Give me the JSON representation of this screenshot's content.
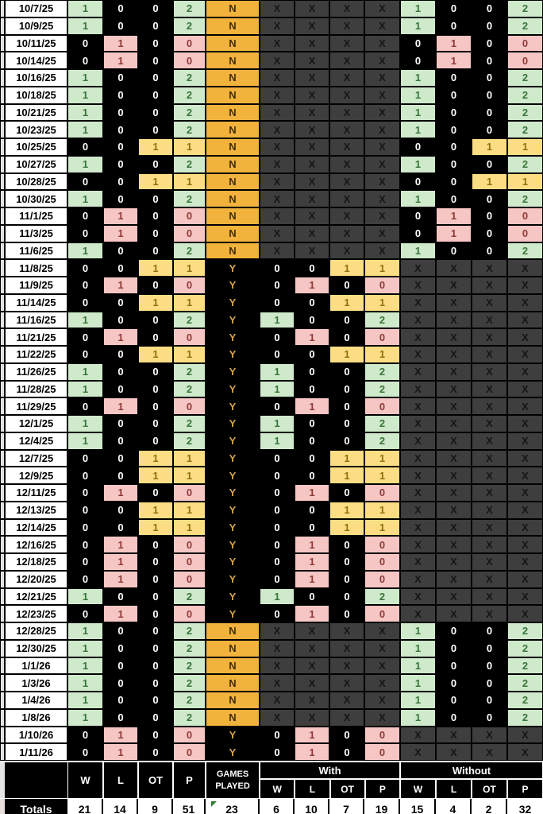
{
  "x_marker": "X",
  "header": {
    "main_cols": [
      "W",
      "L",
      "OT",
      "P"
    ],
    "games_played_line1": "GAMES",
    "games_played_line2": "PLAYED",
    "with_label": "With",
    "without_label": "Without",
    "sub_cols": [
      "W",
      "L",
      "OT",
      "P"
    ]
  },
  "rows": [
    {
      "date": "10/7/25",
      "w": 1,
      "l": 0,
      "ot": 0,
      "p": 2,
      "played": "N"
    },
    {
      "date": "10/9/25",
      "w": 1,
      "l": 0,
      "ot": 0,
      "p": 2,
      "played": "N"
    },
    {
      "date": "10/11/25",
      "w": 0,
      "l": 1,
      "ot": 0,
      "p": 0,
      "played": "N"
    },
    {
      "date": "10/14/25",
      "w": 0,
      "l": 1,
      "ot": 0,
      "p": 0,
      "played": "N"
    },
    {
      "date": "10/16/25",
      "w": 1,
      "l": 0,
      "ot": 0,
      "p": 2,
      "played": "N"
    },
    {
      "date": "10/18/25",
      "w": 1,
      "l": 0,
      "ot": 0,
      "p": 2,
      "played": "N"
    },
    {
      "date": "10/21/25",
      "w": 1,
      "l": 0,
      "ot": 0,
      "p": 2,
      "played": "N"
    },
    {
      "date": "10/23/25",
      "w": 1,
      "l": 0,
      "ot": 0,
      "p": 2,
      "played": "N"
    },
    {
      "date": "10/25/25",
      "w": 0,
      "l": 0,
      "ot": 1,
      "p": 1,
      "played": "N"
    },
    {
      "date": "10/27/25",
      "w": 1,
      "l": 0,
      "ot": 0,
      "p": 2,
      "played": "N"
    },
    {
      "date": "10/28/25",
      "w": 0,
      "l": 0,
      "ot": 1,
      "p": 1,
      "played": "N"
    },
    {
      "date": "10/30/25",
      "w": 1,
      "l": 0,
      "ot": 0,
      "p": 2,
      "played": "N"
    },
    {
      "date": "11/1/25",
      "w": 0,
      "l": 1,
      "ot": 0,
      "p": 0,
      "played": "N"
    },
    {
      "date": "11/3/25",
      "w": 0,
      "l": 1,
      "ot": 0,
      "p": 0,
      "played": "N"
    },
    {
      "date": "11/6/25",
      "w": 1,
      "l": 0,
      "ot": 0,
      "p": 2,
      "played": "N"
    },
    {
      "date": "11/8/25",
      "w": 0,
      "l": 0,
      "ot": 1,
      "p": 1,
      "played": "Y"
    },
    {
      "date": "11/9/25",
      "w": 0,
      "l": 1,
      "ot": 0,
      "p": 0,
      "played": "Y"
    },
    {
      "date": "11/14/25",
      "w": 0,
      "l": 0,
      "ot": 1,
      "p": 1,
      "played": "Y"
    },
    {
      "date": "11/16/25",
      "w": 1,
      "l": 0,
      "ot": 0,
      "p": 2,
      "played": "Y"
    },
    {
      "date": "11/21/25",
      "w": 0,
      "l": 1,
      "ot": 0,
      "p": 0,
      "played": "Y"
    },
    {
      "date": "11/22/25",
      "w": 0,
      "l": 0,
      "ot": 1,
      "p": 1,
      "played": "Y"
    },
    {
      "date": "11/26/25",
      "w": 1,
      "l": 0,
      "ot": 0,
      "p": 2,
      "played": "Y"
    },
    {
      "date": "11/28/25",
      "w": 1,
      "l": 0,
      "ot": 0,
      "p": 2,
      "played": "Y"
    },
    {
      "date": "11/29/25",
      "w": 0,
      "l": 1,
      "ot": 0,
      "p": 0,
      "played": "Y"
    },
    {
      "date": "12/1/25",
      "w": 1,
      "l": 0,
      "ot": 0,
      "p": 2,
      "played": "Y"
    },
    {
      "date": "12/4/25",
      "w": 1,
      "l": 0,
      "ot": 0,
      "p": 2,
      "played": "Y"
    },
    {
      "date": "12/7/25",
      "w": 0,
      "l": 0,
      "ot": 1,
      "p": 1,
      "played": "Y"
    },
    {
      "date": "12/9/25",
      "w": 0,
      "l": 0,
      "ot": 1,
      "p": 1,
      "played": "Y"
    },
    {
      "date": "12/11/25",
      "w": 0,
      "l": 1,
      "ot": 0,
      "p": 0,
      "played": "Y"
    },
    {
      "date": "12/13/25",
      "w": 0,
      "l": 0,
      "ot": 1,
      "p": 1,
      "played": "Y"
    },
    {
      "date": "12/14/25",
      "w": 0,
      "l": 0,
      "ot": 1,
      "p": 1,
      "played": "Y"
    },
    {
      "date": "12/16/25",
      "w": 0,
      "l": 1,
      "ot": 0,
      "p": 0,
      "played": "Y"
    },
    {
      "date": "12/18/25",
      "w": 0,
      "l": 1,
      "ot": 0,
      "p": 0,
      "played": "Y"
    },
    {
      "date": "12/20/25",
      "w": 0,
      "l": 1,
      "ot": 0,
      "p": 0,
      "played": "Y"
    },
    {
      "date": "12/21/25",
      "w": 1,
      "l": 0,
      "ot": 0,
      "p": 2,
      "played": "Y"
    },
    {
      "date": "12/23/25",
      "w": 0,
      "l": 1,
      "ot": 0,
      "p": 0,
      "played": "Y"
    },
    {
      "date": "12/28/25",
      "w": 1,
      "l": 0,
      "ot": 0,
      "p": 2,
      "played": "N"
    },
    {
      "date": "12/30/25",
      "w": 1,
      "l": 0,
      "ot": 0,
      "p": 2,
      "played": "N"
    },
    {
      "date": "1/1/26",
      "w": 1,
      "l": 0,
      "ot": 0,
      "p": 2,
      "played": "N"
    },
    {
      "date": "1/3/26",
      "w": 1,
      "l": 0,
      "ot": 0,
      "p": 2,
      "played": "N"
    },
    {
      "date": "1/4/26",
      "w": 1,
      "l": 0,
      "ot": 0,
      "p": 2,
      "played": "N"
    },
    {
      "date": "1/8/26",
      "w": 1,
      "l": 0,
      "ot": 0,
      "p": 2,
      "played": "N"
    },
    {
      "date": "1/10/26",
      "w": 0,
      "l": 1,
      "ot": 0,
      "p": 0,
      "played": "Y"
    },
    {
      "date": "1/11/26",
      "w": 0,
      "l": 1,
      "ot": 0,
      "p": 0,
      "played": "Y"
    }
  ],
  "totals": {
    "label": "Totals",
    "w": 21,
    "l": 14,
    "ot": 9,
    "p": 51,
    "games_played": 23,
    "with": {
      "w": 6,
      "l": 10,
      "ot": 7,
      "p": 19
    },
    "without": {
      "w": 15,
      "l": 4,
      "ot": 2,
      "p": 32
    }
  },
  "colors": {
    "green_bg": "#cfe9cb",
    "green_tx": "#38753a",
    "pink_bg": "#f6c6c4",
    "pink_tx": "#8e3a36",
    "yellow_bg": "#fbdd83",
    "yellow_tx": "#8f6f0e",
    "orange_bg": "#f1b33c",
    "orange_tx": "#3f2f06",
    "y_tx": "#d2a348",
    "x_bg": "#3e3e3e",
    "x_tx": "#151515",
    "marker_green": "#2e7d32"
  }
}
